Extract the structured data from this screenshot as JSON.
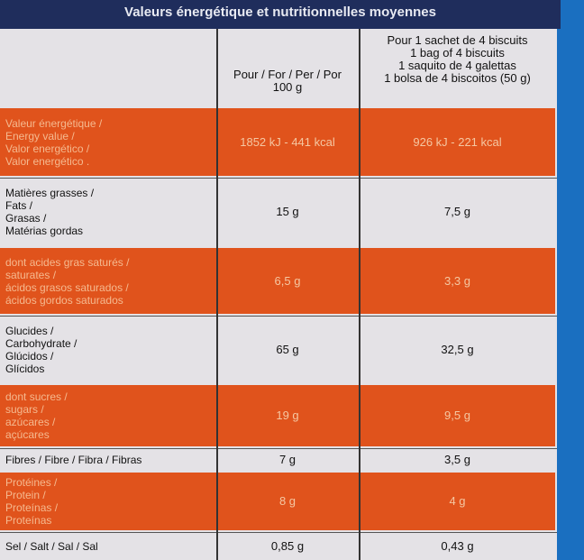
{
  "header": {
    "title": "Valeurs énergétique et nutritionnelles moyennes"
  },
  "table": {
    "columns": [
      [
        "Pour / For / Per / Por",
        "100 g"
      ],
      [
        "Pour 1 sachet de 4 biscuits",
        "1 bag of 4 biscuits",
        "1 saquito de 4 galettas",
        "1 bolsa de 4 biscoitos (50 g)"
      ]
    ],
    "rows": [
      {
        "label": [
          "Valeur énergétique /",
          "Energy value /",
          "Valor energético /",
          "Valor energético ."
        ],
        "per_100g": "1852 kJ - 441 kcal",
        "per_serving": "926 kJ - 221 kcal"
      },
      {
        "label": [
          "Matières grasses /",
          "Fats /",
          "Grasas /",
          "Matérias gordas"
        ],
        "per_100g": "15 g",
        "per_serving": "7,5 g"
      },
      {
        "label": [
          "dont acides gras saturés /",
          "saturates /",
          "ácidos grasos saturados /",
          "ácidos gordos saturados"
        ],
        "per_100g": "6,5 g",
        "per_serving": "3,3 g"
      },
      {
        "label": [
          "Glucides /",
          "Carbohydrate /",
          "Glúcidos /",
          "Glícidos"
        ],
        "per_100g": "65 g",
        "per_serving": "32,5 g"
      },
      {
        "label": [
          "dont sucres /",
          "sugars /",
          "azúcares /",
          "açúcares"
        ],
        "per_100g": "19 g",
        "per_serving": "9,5 g"
      },
      {
        "label": [
          "Fibres / Fibre / Fibra / Fibras"
        ],
        "per_100g": "7 g",
        "per_serving": "3,5 g"
      },
      {
        "label": [
          "Protéines /",
          "Protein /",
          "Proteínas /",
          "Proteínas"
        ],
        "per_100g": "8 g",
        "per_serving": "4 g"
      },
      {
        "label": [
          "Sel / Salt / Sal / Sal"
        ],
        "per_100g": "0,85 g",
        "per_serving": "0,43 g"
      }
    ]
  }
}
